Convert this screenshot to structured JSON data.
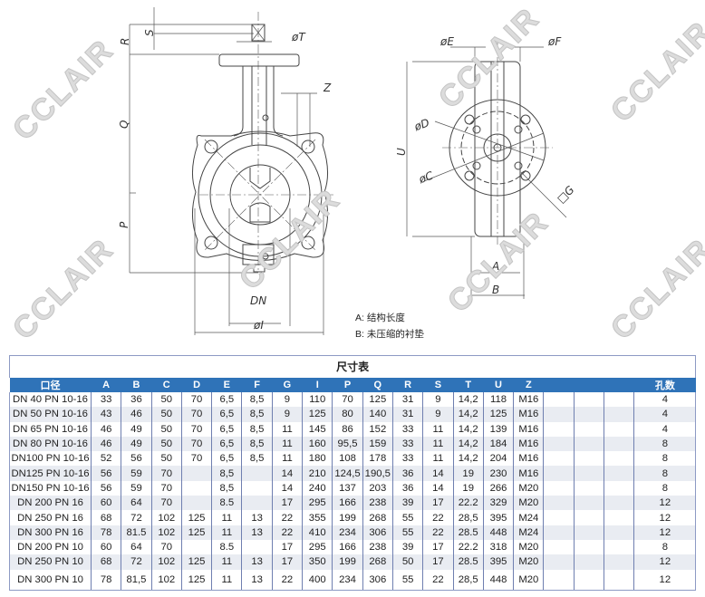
{
  "drawing": {
    "dimension_labels": {
      "R": "R",
      "S": "S",
      "T": "øT",
      "Z": "Z",
      "Q": "Q",
      "P": "P",
      "DN": "DN",
      "I": "øI",
      "E": "øE",
      "F": "øF",
      "D": "øD",
      "C": "øC",
      "G": "□G",
      "U": "U",
      "A": "A",
      "B": "B"
    },
    "legend": [
      "A: 结构长度",
      "B: 未压缩的衬垫"
    ],
    "watermark": "CCLAIR"
  },
  "table": {
    "title": "尺寸表",
    "header_color": "#2f73b8",
    "columns": [
      "口径",
      "A",
      "B",
      "C",
      "D",
      "E",
      "F",
      "G",
      "I",
      "P",
      "Q",
      "R",
      "S",
      "T",
      "U",
      "Z",
      "",
      "",
      "",
      "孔数"
    ],
    "rows": [
      [
        "DN 40 PN 10-16",
        "33",
        "36",
        "50",
        "70",
        "6,5",
        "8,5",
        "9",
        "110",
        "70",
        "125",
        "31",
        "9",
        "14,2",
        "118",
        "M16",
        "",
        "",
        "",
        "4"
      ],
      [
        "DN 50 PN 10-16",
        "43",
        "46",
        "50",
        "70",
        "6,5",
        "8,5",
        "9",
        "125",
        "80",
        "140",
        "31",
        "9",
        "14,2",
        "125",
        "M16",
        "",
        "",
        "",
        "4"
      ],
      [
        "DN 65 PN 10-16",
        "46",
        "49",
        "50",
        "70",
        "6,5",
        "8,5",
        "11",
        "145",
        "86",
        "152",
        "33",
        "11",
        "14,2",
        "139",
        "M16",
        "",
        "",
        "",
        "4"
      ],
      [
        "DN 80 PN 10-16",
        "46",
        "49",
        "50",
        "70",
        "6,5",
        "8,5",
        "11",
        "160",
        "95,5",
        "159",
        "33",
        "11",
        "14,2",
        "184",
        "M16",
        "",
        "",
        "",
        "8"
      ],
      [
        "DN100 PN 10-16",
        "52",
        "56",
        "50",
        "70",
        "6,5",
        "8,5",
        "11",
        "180",
        "108",
        "178",
        "33",
        "11",
        "14,2",
        "204",
        "M16",
        "",
        "",
        "",
        "8"
      ],
      [
        "DN125 PN 10-16",
        "56",
        "59",
        "70",
        "",
        "8,5",
        "",
        "14",
        "210",
        "124,5",
        "190,5",
        "36",
        "14",
        "19",
        "230",
        "M16",
        "",
        "",
        "",
        "8"
      ],
      [
        "DN150 PN 10-16",
        "56",
        "59",
        "70",
        "",
        "8,5",
        "",
        "14",
        "240",
        "137",
        "203",
        "36",
        "14",
        "19",
        "266",
        "M20",
        "",
        "",
        "",
        "8"
      ],
      [
        "DN 200 PN 16",
        "60",
        "64",
        "70",
        "",
        "8.5",
        "",
        "17",
        "295",
        "166",
        "238",
        "39",
        "17",
        "22.2",
        "329",
        "M20",
        "",
        "",
        "",
        "12"
      ],
      [
        "DN 250 PN 16",
        "68",
        "72",
        "102",
        "125",
        "11",
        "13",
        "22",
        "355",
        "199",
        "268",
        "55",
        "22",
        "28,5",
        "395",
        "M24",
        "",
        "",
        "",
        "12"
      ],
      [
        "DN 300 PN 16",
        "78",
        "81.5",
        "102",
        "125",
        "11",
        "13",
        "22",
        "410",
        "234",
        "306",
        "55",
        "22",
        "28.5",
        "448",
        "M24",
        "",
        "",
        "",
        "12"
      ],
      [
        "DN 200 PN 10",
        "60",
        "64",
        "70",
        "",
        "8.5",
        "",
        "17",
        "295",
        "166",
        "238",
        "39",
        "17",
        "22.2",
        "318",
        "M20",
        "",
        "",
        "",
        "8"
      ],
      [
        "DN 250 PN 10",
        "68",
        "72",
        "102",
        "125",
        "11",
        "13",
        "17",
        "350",
        "199",
        "268",
        "50",
        "17",
        "28.5",
        "395",
        "M20",
        "",
        "",
        "",
        "12"
      ],
      [
        "DN 300 PN 10",
        "78",
        "81,5",
        "102",
        "125",
        "11",
        "13",
        "22",
        "400",
        "234",
        "306",
        "55",
        "22",
        "28,5",
        "448",
        "M20",
        "",
        "",
        "",
        "12"
      ]
    ]
  }
}
